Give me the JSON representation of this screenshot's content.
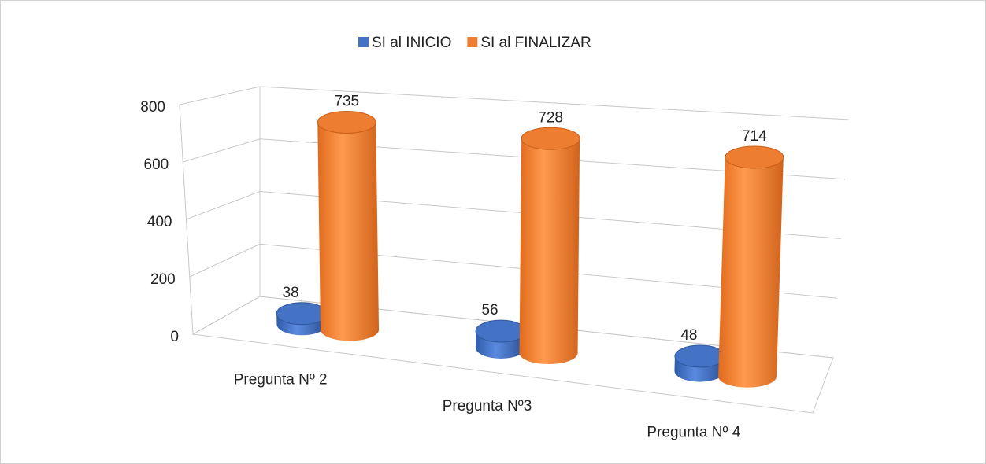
{
  "chart_data": {
    "type": "bar3d",
    "categories": [
      "Pregunta Nº 2",
      "Pregunta Nº3",
      "Pregunta Nº 4"
    ],
    "series": [
      {
        "name": "SI al INICIO",
        "color": "#4472c4",
        "values": [
          38,
          56,
          48
        ]
      },
      {
        "name": "SI al FINALIZAR",
        "color": "#ed7d31",
        "values": [
          735,
          728,
          714
        ]
      }
    ],
    "ylim": [
      0,
      800
    ],
    "yticks": [
      0,
      200,
      400,
      600,
      800
    ],
    "grid": true,
    "legend": "top"
  }
}
